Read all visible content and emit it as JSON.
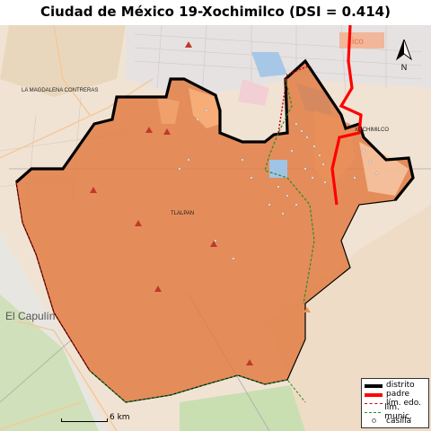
{
  "title": "Ciudad de México 19-Xochimilco (DSI = 0.414)",
  "basemap_labels": {
    "magdalena": "LA MAGDALENA CONTRERAS",
    "tlalpan": "TLALPAN",
    "xochimilco": "XOCHIMILCO",
    "capulin": "El Capulín",
    "partial_city": "ico"
  },
  "north_label": "N",
  "scale_label": "6 km",
  "legend": {
    "items": [
      {
        "label": "distrito",
        "symbol": "thick-black-line"
      },
      {
        "label": "padre",
        "symbol": "thick-red-line"
      },
      {
        "label": "lím. edo.",
        "symbol": "dashed-red-line"
      },
      {
        "label": "lím. munic.",
        "symbol": "dashed-green-line"
      },
      {
        "label": "casilla",
        "symbol": "small-circle"
      }
    ]
  },
  "colors": {
    "district_fill": "#e07a3f",
    "district_border": "#000000",
    "padre": "#ff0000",
    "state_limit": "#cc0000",
    "municipal_limit": "#2a8a2a",
    "basemap": "#f1e3d3",
    "forest": "#c9dfb2"
  }
}
